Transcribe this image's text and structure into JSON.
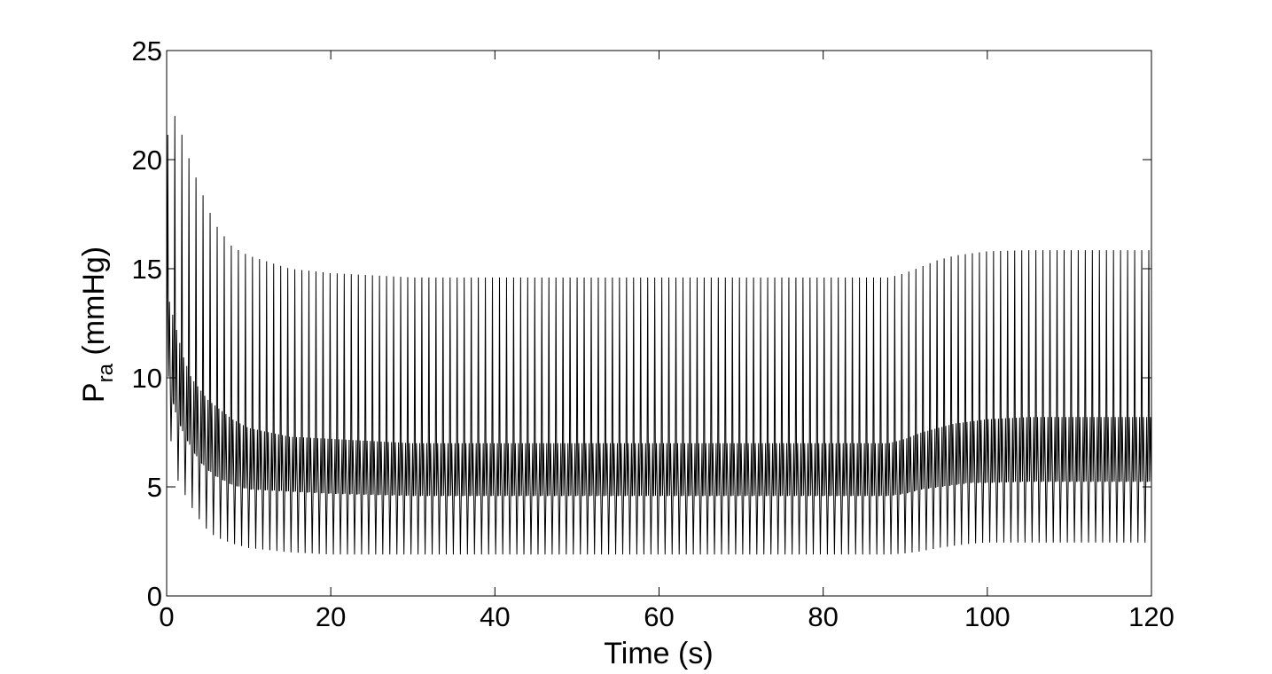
{
  "chart_data": {
    "type": "line",
    "title": "",
    "xlabel": "Time (s)",
    "ylabel": {
      "prefix": "P",
      "subscript": "ra",
      "suffix": " (mmHg)"
    },
    "xlim": [
      0,
      120
    ],
    "ylim": [
      0,
      25
    ],
    "xticks": [
      0,
      20,
      40,
      60,
      80,
      100,
      120
    ],
    "yticks": [
      0,
      5,
      10,
      15,
      20,
      25
    ],
    "grid": false,
    "legend": "none",
    "line_color": "#000000",
    "series": [
      {
        "period_s": 0.86,
        "envelope": {
          "t": [
            0,
            1,
            2,
            3,
            4,
            5,
            6,
            8,
            10,
            15,
            20,
            30,
            40,
            50,
            60,
            70,
            80,
            88,
            90,
            92,
            94,
            96,
            98,
            100,
            105,
            110,
            120
          ],
          "peak": [
            21.0,
            22.0,
            21.0,
            19.7,
            18.8,
            17.8,
            17.0,
            16.0,
            15.6,
            15.0,
            14.8,
            14.6,
            14.6,
            14.6,
            14.6,
            14.6,
            14.6,
            14.6,
            14.8,
            15.1,
            15.4,
            15.6,
            15.7,
            15.8,
            15.85,
            15.85,
            15.85
          ],
          "trough": [
            8.8,
            5.6,
            4.8,
            4.1,
            3.5,
            3.0,
            2.7,
            2.4,
            2.2,
            2.0,
            1.9,
            1.9,
            1.9,
            1.9,
            1.9,
            1.9,
            1.9,
            1.9,
            1.95,
            2.05,
            2.2,
            2.3,
            2.4,
            2.45,
            2.45,
            2.45,
            2.45
          ],
          "upper_band": [
            14.0,
            12.5,
            11.0,
            10.0,
            9.5,
            9.0,
            8.7,
            8.1,
            7.7,
            7.3,
            7.2,
            7.0,
            7.0,
            7.0,
            7.0,
            7.0,
            7.0,
            7.0,
            7.2,
            7.5,
            7.7,
            7.9,
            8.0,
            8.1,
            8.2,
            8.2,
            8.2
          ],
          "lower_band": [
            10.5,
            8.5,
            7.5,
            6.8,
            6.2,
            5.8,
            5.5,
            5.1,
            4.9,
            4.8,
            4.7,
            4.6,
            4.6,
            4.6,
            4.6,
            4.6,
            4.6,
            4.6,
            4.7,
            4.9,
            5.0,
            5.1,
            5.2,
            5.2,
            5.25,
            5.25,
            5.25
          ]
        }
      }
    ]
  }
}
